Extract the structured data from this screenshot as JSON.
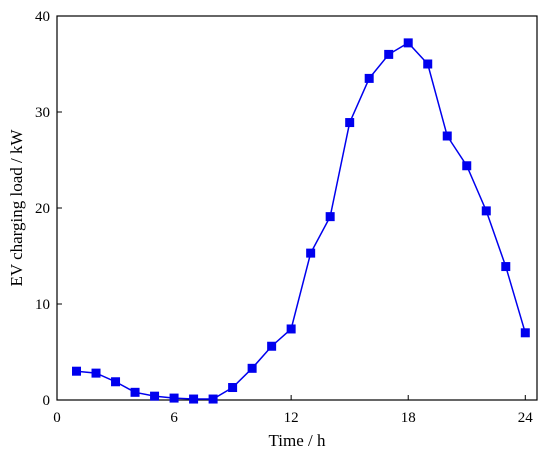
{
  "chart_data": {
    "type": "line",
    "title": "",
    "xlabel": "Time / h",
    "ylabel": "EV charging load / kW",
    "xlim": [
      0,
      24.6
    ],
    "ylim": [
      0,
      40
    ],
    "xticks": [
      0,
      6,
      12,
      18,
      24
    ],
    "yticks": [
      0,
      10,
      20,
      30,
      40
    ],
    "grid": false,
    "legend": "none",
    "series": [
      {
        "color": "#0000ee",
        "marker": "square",
        "x": [
          1,
          2,
          3,
          4,
          5,
          6,
          7,
          8,
          9,
          10,
          11,
          12,
          13,
          14,
          15,
          16,
          17,
          18,
          19,
          20,
          21,
          22,
          23,
          24
        ],
        "y": [
          3.0,
          2.8,
          1.9,
          0.8,
          0.4,
          0.2,
          0.1,
          0.1,
          1.3,
          3.3,
          5.6,
          7.4,
          15.3,
          19.1,
          28.9,
          33.5,
          36.0,
          37.2,
          35.0,
          27.5,
          24.4,
          19.7,
          13.9,
          7.0
        ]
      }
    ]
  }
}
